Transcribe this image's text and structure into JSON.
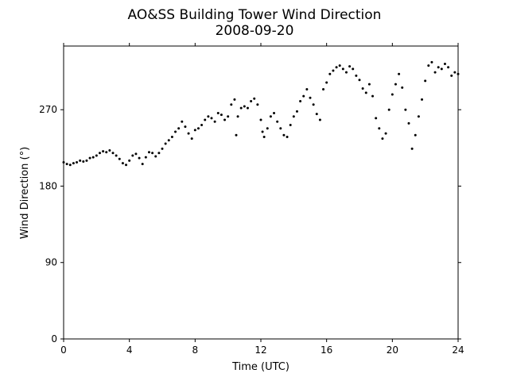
{
  "chart_data": {
    "type": "scatter",
    "title": "AO&SS Building Tower Wind Direction",
    "subtitle": "2008-09-20",
    "xlabel": "Time (UTC)",
    "ylabel": "Wind Direction (°)",
    "xlim": [
      0,
      24
    ],
    "ylim": [
      0,
      345
    ],
    "xticks": [
      0,
      4,
      8,
      12,
      16,
      20,
      24
    ],
    "yticks": [
      0,
      90,
      180,
      270
    ],
    "grid": false,
    "marker_color": "#000000",
    "series": [
      {
        "points": [
          [
            0.0,
            208
          ],
          [
            0.2,
            206
          ],
          [
            0.4,
            205
          ],
          [
            0.6,
            207
          ],
          [
            0.8,
            208
          ],
          [
            1.0,
            210
          ],
          [
            1.2,
            209
          ],
          [
            1.4,
            210
          ],
          [
            1.6,
            213
          ],
          [
            1.8,
            214
          ],
          [
            2.0,
            216
          ],
          [
            2.2,
            219
          ],
          [
            2.4,
            221
          ],
          [
            2.6,
            220
          ],
          [
            2.8,
            222
          ],
          [
            3.0,
            219
          ],
          [
            3.2,
            216
          ],
          [
            3.4,
            212
          ],
          [
            3.6,
            207
          ],
          [
            3.8,
            205
          ],
          [
            4.0,
            210
          ],
          [
            4.2,
            216
          ],
          [
            4.4,
            218
          ],
          [
            4.6,
            213
          ],
          [
            4.8,
            206
          ],
          [
            5.0,
            214
          ],
          [
            5.2,
            220
          ],
          [
            5.4,
            219
          ],
          [
            5.6,
            215
          ],
          [
            5.8,
            219
          ],
          [
            6.0,
            224
          ],
          [
            6.2,
            230
          ],
          [
            6.4,
            234
          ],
          [
            6.6,
            238
          ],
          [
            6.8,
            244
          ],
          [
            7.0,
            248
          ],
          [
            7.2,
            256
          ],
          [
            7.4,
            250
          ],
          [
            7.6,
            242
          ],
          [
            7.8,
            236
          ],
          [
            8.0,
            246
          ],
          [
            8.2,
            248
          ],
          [
            8.4,
            252
          ],
          [
            8.6,
            258
          ],
          [
            8.8,
            262
          ],
          [
            9.0,
            260
          ],
          [
            9.2,
            256
          ],
          [
            9.4,
            266
          ],
          [
            9.6,
            264
          ],
          [
            9.8,
            258
          ],
          [
            10.0,
            262
          ],
          [
            10.2,
            276
          ],
          [
            10.4,
            282
          ],
          [
            10.5,
            240
          ],
          [
            10.6,
            262
          ],
          [
            10.8,
            272
          ],
          [
            11.0,
            274
          ],
          [
            11.2,
            272
          ],
          [
            11.4,
            280
          ],
          [
            11.6,
            283
          ],
          [
            11.8,
            276
          ],
          [
            12.0,
            258
          ],
          [
            12.1,
            244
          ],
          [
            12.2,
            238
          ],
          [
            12.4,
            248
          ],
          [
            12.6,
            262
          ],
          [
            12.8,
            266
          ],
          [
            13.0,
            256
          ],
          [
            13.2,
            248
          ],
          [
            13.4,
            240
          ],
          [
            13.6,
            238
          ],
          [
            13.8,
            252
          ],
          [
            14.0,
            262
          ],
          [
            14.2,
            268
          ],
          [
            14.4,
            280
          ],
          [
            14.6,
            286
          ],
          [
            14.8,
            294
          ],
          [
            15.0,
            284
          ],
          [
            15.2,
            276
          ],
          [
            15.4,
            265
          ],
          [
            15.6,
            258
          ],
          [
            15.8,
            294
          ],
          [
            16.0,
            302
          ],
          [
            16.2,
            312
          ],
          [
            16.4,
            316
          ],
          [
            16.6,
            320
          ],
          [
            16.8,
            322
          ],
          [
            17.0,
            318
          ],
          [
            17.2,
            314
          ],
          [
            17.4,
            321
          ],
          [
            17.6,
            318
          ],
          [
            17.8,
            310
          ],
          [
            18.0,
            305
          ],
          [
            18.2,
            295
          ],
          [
            18.4,
            290
          ],
          [
            18.6,
            300
          ],
          [
            18.8,
            286
          ],
          [
            19.0,
            260
          ],
          [
            19.2,
            248
          ],
          [
            19.4,
            236
          ],
          [
            19.6,
            242
          ],
          [
            19.8,
            270
          ],
          [
            20.0,
            288
          ],
          [
            20.2,
            300
          ],
          [
            20.4,
            312
          ],
          [
            20.6,
            296
          ],
          [
            20.8,
            270
          ],
          [
            21.0,
            254
          ],
          [
            21.2,
            224
          ],
          [
            21.4,
            240
          ],
          [
            21.6,
            262
          ],
          [
            21.8,
            282
          ],
          [
            22.0,
            304
          ],
          [
            22.2,
            322
          ],
          [
            22.4,
            326
          ],
          [
            22.6,
            314
          ],
          [
            22.8,
            320
          ],
          [
            23.0,
            318
          ],
          [
            23.2,
            324
          ],
          [
            23.4,
            320
          ],
          [
            23.6,
            310
          ],
          [
            23.8,
            314
          ],
          [
            24.0,
            312
          ]
        ]
      }
    ]
  }
}
